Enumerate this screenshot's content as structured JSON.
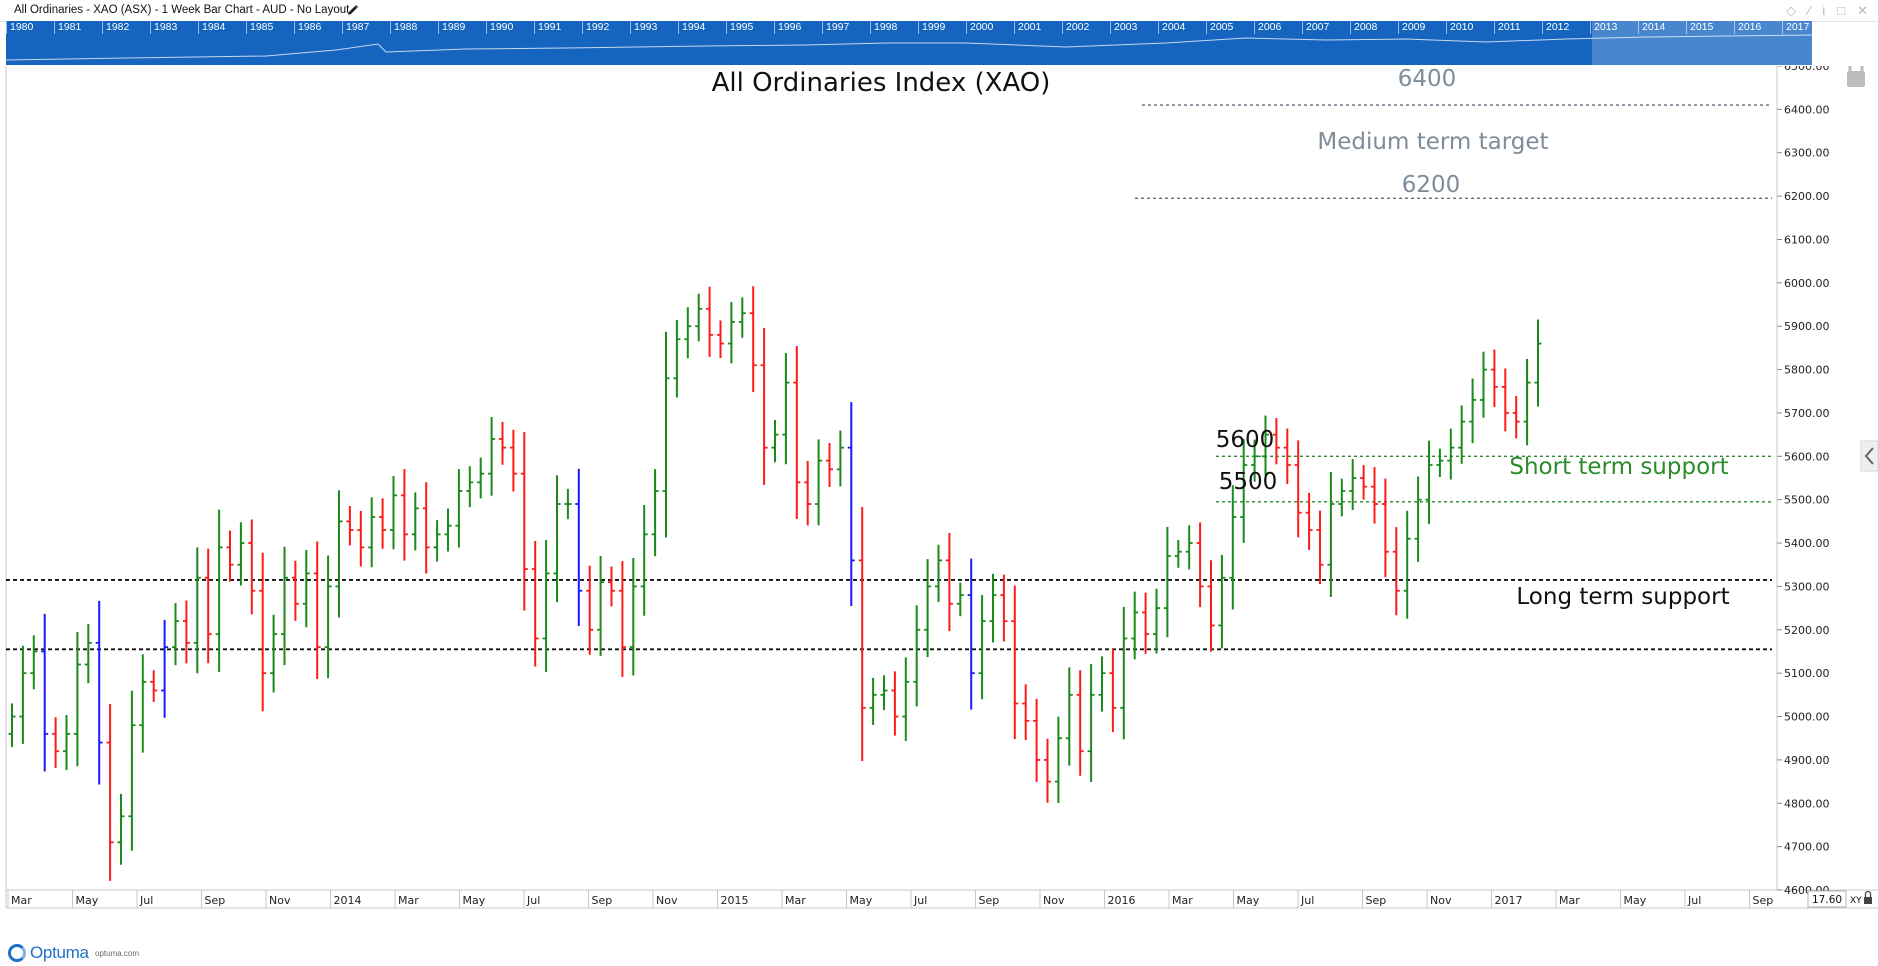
{
  "window": {
    "title": "All Ordinaries - XAO (ASX) - 1 Week Bar Chart - AUD - No Layout"
  },
  "navigator": {
    "years": [
      "1980",
      "1981",
      "1982",
      "1983",
      "1984",
      "1985",
      "1986",
      "1987",
      "1988",
      "1989",
      "1990",
      "1991",
      "1992",
      "1993",
      "1994",
      "1995",
      "1996",
      "1997",
      "1998",
      "1999",
      "2000",
      "2001",
      "2002",
      "2003",
      "2004",
      "2005",
      "2006",
      "2007",
      "2008",
      "2009",
      "2010",
      "2011",
      "2012",
      "2013",
      "2014",
      "2015",
      "2016",
      "2017"
    ]
  },
  "scale_box": {
    "value": "17.60",
    "xy_label": "XY"
  },
  "footer": {
    "brand": "Optuma",
    "url": "optuma.com"
  },
  "colors": {
    "up": "#1a8a1a",
    "down": "#ff1a1a",
    "outside": "#1a1aff",
    "annotation_gray": "#7f8c99",
    "annotation_green": "#2a8c2a"
  },
  "chart_data": {
    "type": "bar",
    "subtype": "ohlc",
    "title": "All Ordinaries Index (XAO)",
    "ylim": [
      4600,
      6500
    ],
    "yticks": [
      "4600.00",
      "4700.00",
      "4800.00",
      "4900.00",
      "5000.00",
      "5100.00",
      "5200.00",
      "5300.00",
      "5400.00",
      "5500.00",
      "5600.00",
      "5700.00",
      "5800.00",
      "5900.00",
      "6000.00",
      "6100.00",
      "6200.00",
      "6300.00",
      "6400.00",
      "6500.00"
    ],
    "x_ticks": [
      "Mar",
      "May",
      "Jul",
      "Sep",
      "Nov",
      "2014",
      "Mar",
      "May",
      "Jul",
      "Sep",
      "Nov",
      "2015",
      "Mar",
      "May",
      "Jul",
      "Sep",
      "Nov",
      "2016",
      "Mar",
      "May",
      "Jul",
      "Sep",
      "Nov",
      "2017",
      "Mar",
      "May",
      "Jul",
      "Sep"
    ],
    "x_range": [
      "2013-03",
      "2017-09"
    ],
    "closes": [
      5000,
      5100,
      5150,
      4960,
      4920,
      4960,
      5120,
      5170,
      4940,
      4710,
      4770,
      4980,
      5080,
      5060,
      5160,
      5220,
      5170,
      5320,
      5190,
      5390,
      5350,
      5400,
      5290,
      5100,
      5190,
      5320,
      5260,
      5330,
      5160,
      5300,
      5450,
      5430,
      5390,
      5460,
      5430,
      5510,
      5420,
      5480,
      5390,
      5420,
      5440,
      5520,
      5540,
      5560,
      5640,
      5620,
      5560,
      5340,
      5180,
      5330,
      5490,
      5490,
      5290,
      5200,
      5310,
      5290,
      5160,
      5300,
      5420,
      5520,
      5780,
      5870,
      5900,
      5940,
      5880,
      5860,
      5910,
      5930,
      5810,
      5620,
      5650,
      5770,
      5540,
      5490,
      5590,
      5570,
      5620,
      5360,
      5020,
      5050,
      5060,
      5000,
      5080,
      5200,
      5300,
      5360,
      5260,
      5280,
      5100,
      5220,
      5280,
      5220,
      5030,
      4990,
      4900,
      4850,
      4950,
      5050,
      4920,
      5050,
      5100,
      5020,
      5180,
      5240,
      5190,
      5250,
      5370,
      5380,
      5400,
      5300,
      5210,
      5320,
      5460,
      5580,
      5600,
      5650,
      5620,
      5580,
      5470,
      5430,
      5350,
      5490,
      5520,
      5550,
      5530,
      5490,
      5380,
      5290,
      5410,
      5500,
      5580,
      5590,
      5620,
      5680,
      5730,
      5800,
      5760,
      5700,
      5680,
      5770,
      5860
    ],
    "annotations": {
      "target_high": "6400",
      "target_label": "Medium term target",
      "target_low": "6200",
      "support_high": "5600",
      "support_low": "5500",
      "short_term_label": "Short term support",
      "long_term_label": "Long term support"
    },
    "levels": {
      "target_high": 6410,
      "target_low": 6195,
      "short_term_high": 5600,
      "short_term_low": 5495,
      "long_term_high": 5315,
      "long_term_low": 5155
    }
  }
}
